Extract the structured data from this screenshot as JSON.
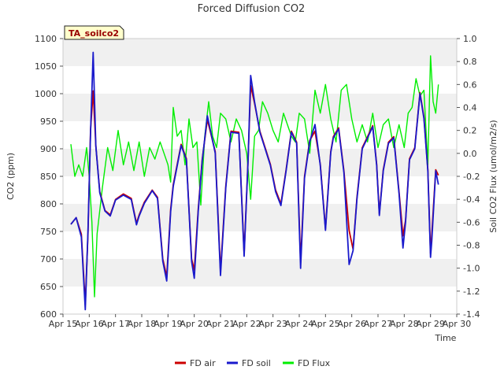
{
  "chart_data": {
    "type": "line",
    "title": "Forced Diffusion CO2",
    "xlabel": "Time",
    "ylabel": "CO2 (ppm)",
    "y2label": "Soil CO2 Flux (umol/m2/s)",
    "tag": "TA_soilco2",
    "xlim": [
      15,
      30
    ],
    "ylim": [
      600,
      1100
    ],
    "y2lim": [
      -1.4,
      1.0
    ],
    "x_ticks": [
      15,
      16,
      17,
      18,
      19,
      20,
      21,
      22,
      23,
      24,
      25,
      26,
      27,
      28,
      29,
      30
    ],
    "x_tick_labels": [
      "Apr 15",
      "Apr 16",
      "Apr 17",
      "Apr 18",
      "Apr 19",
      "Apr 20",
      "Apr 21",
      "Apr 22",
      "Apr 23",
      "Apr 24",
      "Apr 25",
      "Apr 26",
      "Apr 27",
      "Apr 28",
      "Apr 29",
      "Apr 30"
    ],
    "y_ticks": [
      600,
      650,
      700,
      750,
      800,
      850,
      900,
      950,
      1000,
      1050,
      1100
    ],
    "y_tick_labels": [
      "600",
      "650",
      "700",
      "750",
      "800",
      "850",
      "900",
      "950",
      "1000",
      "1050",
      "1100"
    ],
    "y2_ticks": [
      -1.4,
      -1.2,
      -1.0,
      -0.8,
      -0.6,
      -0.4,
      -0.2,
      0.0,
      0.2,
      0.4,
      0.6,
      0.8,
      1.0
    ],
    "y2_tick_labels": [
      "-1.4",
      "-1.2",
      "-1.0",
      "-0.8",
      "-0.6",
      "-0.4",
      "-0.2",
      "0.0",
      "0.2",
      "0.4",
      "0.6",
      "0.8",
      "1.0"
    ],
    "legend_position": "bottom-center",
    "grid": "horizontal bands",
    "series": [
      {
        "name": "FD air",
        "axis": "left",
        "color": "#cc0000",
        "x": [
          15.3,
          15.5,
          15.7,
          15.85,
          15.95,
          16.05,
          16.15,
          16.25,
          16.4,
          16.6,
          16.8,
          17.0,
          17.3,
          17.6,
          17.8,
          17.9,
          18.1,
          18.4,
          18.6,
          18.8,
          18.95,
          19.1,
          19.2,
          19.5,
          19.7,
          19.9,
          20.0,
          20.15,
          20.3,
          20.5,
          20.8,
          21.0,
          21.2,
          21.4,
          21.7,
          21.9,
          22.05,
          22.15,
          22.3,
          22.5,
          22.7,
          22.9,
          23.1,
          23.3,
          23.5,
          23.7,
          23.9,
          24.05,
          24.2,
          24.4,
          24.6,
          24.8,
          25.0,
          25.2,
          25.3,
          25.5,
          25.7,
          25.9,
          26.05,
          26.2,
          26.4,
          26.6,
          26.8,
          26.95,
          27.05,
          27.2,
          27.4,
          27.6,
          27.8,
          27.95,
          28.05,
          28.2,
          28.4,
          28.6,
          28.75,
          28.9,
          29.0,
          29.05,
          29.2,
          29.3
        ],
        "y": [
          763,
          775,
          745,
          618,
          745,
          935,
          1005,
          905,
          822,
          788,
          780,
          808,
          818,
          810,
          765,
          780,
          803,
          825,
          812,
          700,
          668,
          790,
          835,
          908,
          882,
          700,
          680,
          790,
          880,
          953,
          895,
          678,
          832,
          932,
          930,
          710,
          880,
          1015,
          982,
          932,
          902,
          872,
          825,
          800,
          862,
          932,
          912,
          695,
          850,
          915,
          932,
          872,
          755,
          895,
          922,
          938,
          860,
          752,
          718,
          812,
          902,
          922,
          942,
          872,
          782,
          862,
          912,
          922,
          822,
          742,
          770,
          882,
          902,
          1002,
          958,
          862,
          710,
          745,
          862,
          852
        ]
      },
      {
        "name": "FD soil",
        "axis": "left",
        "color": "#1a1acc",
        "x": [
          15.3,
          15.5,
          15.7,
          15.85,
          15.95,
          16.05,
          16.15,
          16.25,
          16.4,
          16.6,
          16.8,
          17.0,
          17.3,
          17.6,
          17.8,
          17.9,
          18.1,
          18.4,
          18.6,
          18.8,
          18.95,
          19.1,
          19.2,
          19.5,
          19.7,
          19.9,
          20.0,
          20.15,
          20.3,
          20.5,
          20.8,
          21.0,
          21.2,
          21.4,
          21.7,
          21.9,
          22.05,
          22.15,
          22.3,
          22.5,
          22.7,
          22.9,
          23.1,
          23.3,
          23.5,
          23.7,
          23.9,
          24.05,
          24.2,
          24.4,
          24.6,
          24.8,
          25.0,
          25.2,
          25.3,
          25.5,
          25.7,
          25.9,
          26.05,
          26.2,
          26.4,
          26.6,
          26.8,
          26.95,
          27.05,
          27.2,
          27.4,
          27.6,
          27.8,
          27.95,
          28.05,
          28.2,
          28.4,
          28.6,
          28.75,
          28.9,
          29.0,
          29.05,
          29.2,
          29.3
        ],
        "y": [
          763,
          775,
          740,
          608,
          750,
          930,
          1075,
          905,
          820,
          787,
          778,
          807,
          816,
          808,
          762,
          778,
          801,
          824,
          810,
          696,
          660,
          786,
          832,
          906,
          880,
          696,
          665,
          786,
          877,
          960,
          892,
          670,
          829,
          930,
          928,
          705,
          878,
          1033,
          985,
          930,
          900,
          870,
          822,
          797,
          860,
          930,
          910,
          683,
          847,
          913,
          944,
          870,
          752,
          893,
          920,
          936,
          857,
          690,
          715,
          809,
          900,
          920,
          940,
          870,
          779,
          860,
          910,
          920,
          819,
          720,
          767,
          880,
          900,
          1000,
          955,
          860,
          703,
          733,
          860,
          835
        ]
      },
      {
        "name": "FD Flux",
        "axis": "right",
        "color": "#00ee00",
        "x": [
          15.3,
          15.45,
          15.6,
          15.75,
          15.9,
          16.0,
          16.1,
          16.2,
          16.3,
          16.5,
          16.7,
          16.9,
          17.1,
          17.3,
          17.5,
          17.7,
          17.9,
          18.1,
          18.3,
          18.5,
          18.7,
          18.85,
          19.0,
          19.1,
          19.2,
          19.35,
          19.5,
          19.65,
          19.8,
          19.95,
          20.1,
          20.25,
          20.4,
          20.55,
          20.7,
          20.85,
          21.0,
          21.2,
          21.4,
          21.6,
          21.8,
          22.0,
          22.15,
          22.3,
          22.45,
          22.6,
          22.8,
          23.0,
          23.2,
          23.4,
          23.55,
          23.7,
          23.85,
          24.0,
          24.2,
          24.4,
          24.6,
          24.8,
          25.0,
          25.2,
          25.4,
          25.6,
          25.8,
          26.0,
          26.2,
          26.4,
          26.6,
          26.8,
          27.0,
          27.2,
          27.4,
          27.6,
          27.8,
          28.0,
          28.15,
          28.3,
          28.45,
          28.6,
          28.75,
          28.9,
          29.0,
          29.1,
          29.2,
          29.3
        ],
        "y": [
          0.08,
          -0.2,
          -0.1,
          -0.2,
          0.05,
          -0.2,
          -0.6,
          -1.25,
          -0.7,
          -0.3,
          0.05,
          -0.15,
          0.2,
          -0.1,
          0.1,
          -0.15,
          0.1,
          -0.2,
          0.05,
          -0.05,
          0.1,
          0.0,
          -0.1,
          -0.25,
          0.4,
          0.15,
          0.2,
          -0.1,
          0.3,
          0.05,
          0.1,
          -0.45,
          0.15,
          0.45,
          0.15,
          0.05,
          0.35,
          0.3,
          0.1,
          0.3,
          0.2,
          0.0,
          -0.4,
          0.15,
          0.2,
          0.45,
          0.35,
          0.2,
          0.1,
          0.35,
          0.25,
          0.15,
          0.1,
          0.35,
          0.3,
          0.0,
          0.55,
          0.35,
          0.6,
          0.3,
          0.1,
          0.55,
          0.6,
          0.3,
          0.1,
          0.25,
          0.1,
          0.35,
          0.05,
          0.25,
          0.3,
          0.05,
          0.25,
          0.05,
          0.35,
          0.4,
          0.65,
          0.5,
          0.55,
          -0.1,
          0.85,
          0.45,
          0.35,
          0.6
        ]
      }
    ]
  }
}
